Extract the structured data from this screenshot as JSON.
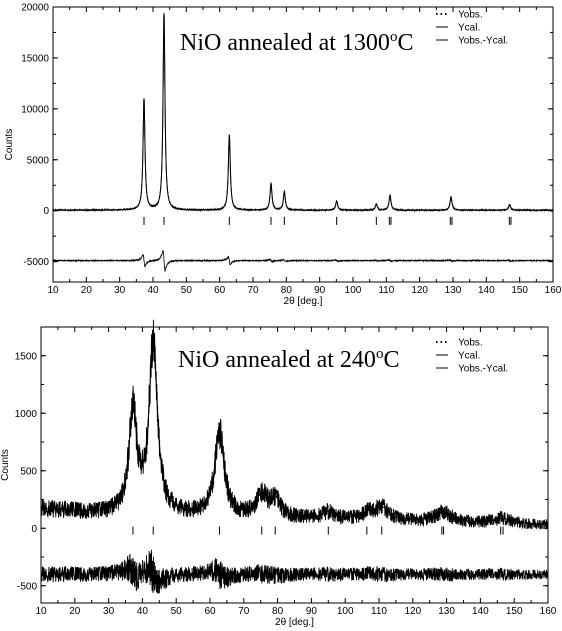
{
  "chart_data": [
    {
      "type": "line",
      "title": {
        "prefix": "NiO annealed at 1300",
        "sup": "o",
        "suffix": "C"
      },
      "xlabel": "2θ [deg.]",
      "ylabel": "Counts",
      "xlim": [
        10,
        160
      ],
      "ylim": [
        -7000,
        20000
      ],
      "xticks": [
        10,
        20,
        30,
        40,
        50,
        60,
        70,
        80,
        90,
        100,
        110,
        120,
        130,
        140,
        150,
        160
      ],
      "yticks": [
        -5000,
        0,
        5000,
        10000,
        15000,
        20000
      ],
      "legend": {
        "placement": "top-right",
        "entries": [
          "Yobs.",
          "Ycal.",
          "Yobs.-Ycal."
        ]
      },
      "baseline": 50,
      "peaks": [
        {
          "x": 37.3,
          "h": 10900
        },
        {
          "x": 43.3,
          "h": 19300
        },
        {
          "x": 62.9,
          "h": 7400
        },
        {
          "x": 75.4,
          "h": 2600
        },
        {
          "x": 79.4,
          "h": 1800
        },
        {
          "x": 95.1,
          "h": 900
        },
        {
          "x": 107.0,
          "h": 600
        },
        {
          "x": 111.1,
          "h": 1450
        },
        {
          "x": 129.4,
          "h": 1300
        },
        {
          "x": 147.0,
          "h": 550
        }
      ],
      "reflections": [
        37.3,
        43.3,
        62.9,
        75.4,
        79.4,
        95.1,
        107.0,
        110.9,
        111.4,
        129.2,
        129.7,
        146.9,
        147.4
      ],
      "reflection_y": -1000,
      "difference_offset": -4900
    },
    {
      "type": "line",
      "title": {
        "prefix": "NiO annealed at 240",
        "sup": "o",
        "suffix": "C"
      },
      "xlabel": "2θ [deg.]",
      "ylabel": "Counts",
      "xlim": [
        10,
        160
      ],
      "ylim": [
        -650,
        1750
      ],
      "xticks": [
        10,
        15,
        20,
        25,
        30,
        35,
        40,
        45,
        50,
        55,
        60,
        65,
        70,
        75,
        80,
        85,
        90,
        95,
        100,
        105,
        110,
        115,
        120,
        125,
        130,
        135,
        140,
        145,
        150,
        155,
        160
      ],
      "xtick_labels": [
        10,
        20,
        30,
        40,
        50,
        60,
        70,
        80,
        90,
        100,
        110,
        120,
        130,
        140,
        150,
        160
      ],
      "yticks": [
        -500,
        0,
        500,
        1000,
        1500
      ],
      "legend": {
        "placement": "top-right",
        "entries": [
          "Yobs.",
          "Ycal.",
          "Yobs.-Ycal."
        ]
      },
      "background": [
        {
          "x": 10,
          "y": 170
        },
        {
          "x": 30,
          "y": 120
        },
        {
          "x": 60,
          "y": 100
        },
        {
          "x": 100,
          "y": 70
        },
        {
          "x": 160,
          "y": 30
        }
      ],
      "peaks": [
        {
          "x": 37.2,
          "h": 890,
          "w": 1.4
        },
        {
          "x": 43.2,
          "h": 1470,
          "w": 1.5
        },
        {
          "x": 62.8,
          "h": 720,
          "w": 1.7
        },
        {
          "x": 75.3,
          "h": 180,
          "w": 1.9
        },
        {
          "x": 79.3,
          "h": 150,
          "w": 1.9
        },
        {
          "x": 95.0,
          "h": 60,
          "w": 2.3
        },
        {
          "x": 106.5,
          "h": 50,
          "w": 2.3
        },
        {
          "x": 110.8,
          "h": 110,
          "w": 2.5
        },
        {
          "x": 129.0,
          "h": 85,
          "w": 3.0
        },
        {
          "x": 146.5,
          "h": 45,
          "w": 3.0
        }
      ],
      "reflections": [
        37.2,
        43.2,
        62.8,
        75.3,
        79.3,
        95.0,
        106.4,
        110.8,
        128.6,
        129.1,
        146.0,
        146.7
      ],
      "reflection_y": -20,
      "difference_offset": -400
    }
  ]
}
